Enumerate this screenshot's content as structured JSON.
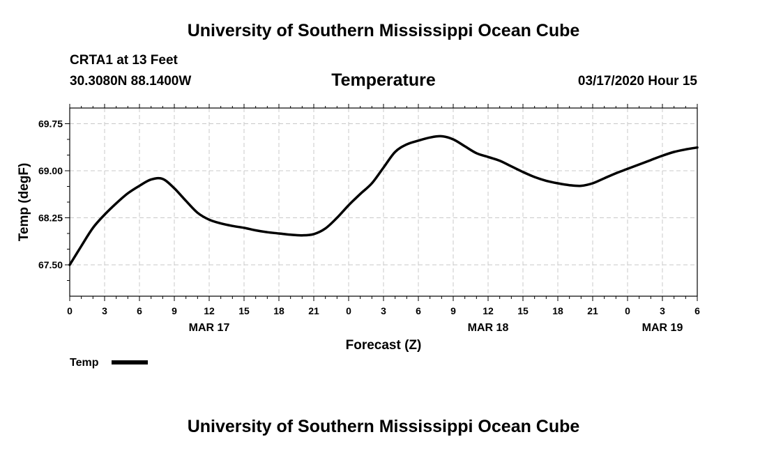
{
  "header": {
    "title": "University of Southern Mississippi Ocean Cube",
    "station": "CRTA1 at 13 Feet",
    "coords": "30.3080N 88.1400W",
    "datetime": "03/17/2020 Hour 15"
  },
  "footer": {
    "title": "University of Southern Mississippi Ocean Cube"
  },
  "chart_data": {
    "type": "line",
    "title": "Temperature",
    "xlabel": "Forecast (Z)",
    "ylabel": "Temp (degF)",
    "xlim": [
      0,
      54
    ],
    "ylim": [
      67.0,
      70.0
    ],
    "x_ticks": [
      0,
      3,
      6,
      9,
      12,
      15,
      18,
      21,
      24,
      27,
      30,
      33,
      36,
      39,
      42,
      45,
      48,
      51,
      54
    ],
    "x_tick_labels": [
      "0",
      "3",
      "6",
      "9",
      "12",
      "15",
      "18",
      "21",
      "0",
      "3",
      "6",
      "9",
      "12",
      "15",
      "18",
      "21",
      "0",
      "3",
      "6"
    ],
    "y_ticks": [
      67.5,
      68.25,
      69.0,
      69.75
    ],
    "y_tick_labels": [
      "67.50",
      "68.25",
      "69.00",
      "69.75"
    ],
    "date_labels": [
      {
        "x": 12,
        "label": "MAR 17"
      },
      {
        "x": 36,
        "label": "MAR 18"
      },
      {
        "x": 51,
        "label": "MAR 19"
      }
    ],
    "grid": true,
    "legend": {
      "position": "bottom-left",
      "entries": [
        "Temp"
      ]
    },
    "series": [
      {
        "name": "Temp",
        "color": "#000000",
        "x": [
          0,
          1,
          2,
          3,
          4,
          5,
          6,
          7,
          8,
          9,
          10,
          11,
          12,
          13,
          14,
          15,
          16,
          17,
          18,
          19,
          20,
          21,
          22,
          23,
          24,
          25,
          26,
          27,
          28,
          29,
          30,
          31,
          32,
          33,
          34,
          35,
          36,
          37,
          38,
          39,
          40,
          41,
          42,
          43,
          44,
          45,
          46,
          47,
          48,
          49,
          50,
          51,
          52,
          53,
          54
        ],
        "values": [
          67.5,
          67.8,
          68.09,
          68.3,
          68.48,
          68.64,
          68.76,
          68.86,
          68.87,
          68.72,
          68.52,
          68.33,
          68.22,
          68.16,
          68.12,
          68.09,
          68.05,
          68.02,
          68.0,
          67.98,
          67.97,
          67.99,
          68.08,
          68.25,
          68.45,
          68.63,
          68.8,
          69.05,
          69.3,
          69.42,
          69.48,
          69.53,
          69.55,
          69.5,
          69.39,
          69.28,
          69.22,
          69.16,
          69.07,
          68.98,
          68.9,
          68.84,
          68.8,
          68.77,
          68.76,
          68.8,
          68.88,
          68.96,
          69.03,
          69.1,
          69.17,
          69.24,
          69.3,
          69.34,
          69.37
        ]
      }
    ]
  }
}
